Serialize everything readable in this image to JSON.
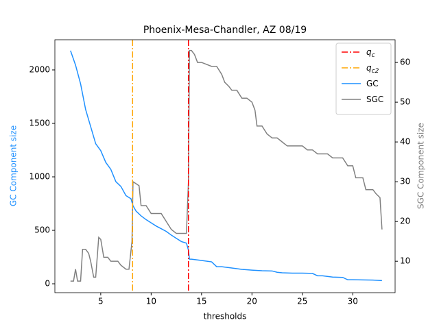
{
  "chart_data": {
    "type": "line",
    "title": "Phoenix-Mesa-Chandler, AZ 08/19",
    "xlabel": "thresholds",
    "ylabel": "GC Component size",
    "y2label": "SGC Component size",
    "xlim": [
      0.45,
      34.2
    ],
    "ylim": [
      -83,
      2282
    ],
    "y2lim": [
      2.1,
      65.7
    ],
    "xticks": [
      5,
      10,
      15,
      20,
      25,
      30
    ],
    "yticks": [
      0,
      500,
      1000,
      1500,
      2000
    ],
    "y2ticks": [
      10,
      20,
      30,
      40,
      50,
      60
    ],
    "legend": "upper right",
    "vlines": [
      {
        "name": "q",
        "name_sub": "c",
        "x": 13.7,
        "color": "red"
      },
      {
        "name": "q",
        "name_sub": "c2",
        "x": 8.16,
        "color": "orange"
      }
    ],
    "series": [
      {
        "name": "GC",
        "color": "#1e90ff",
        "axis": "y",
        "x": [
          2,
          2.5,
          3,
          3.5,
          4,
          4.5,
          5,
          5.5,
          6,
          6.5,
          7,
          7.5,
          8,
          8.2,
          8.5,
          9,
          9.5,
          10,
          10.5,
          11,
          11.5,
          12,
          12.5,
          13,
          13.5,
          13.7,
          13.8,
          14,
          15,
          16,
          16.5,
          17,
          18,
          19,
          20,
          21,
          22,
          22.5,
          23,
          24,
          25,
          26,
          26.5,
          27,
          28,
          29,
          29.5,
          30,
          31,
          32,
          32.9
        ],
        "values": [
          2180,
          2045,
          1870,
          1630,
          1470,
          1310,
          1245,
          1135,
          1070,
          955,
          910,
          825,
          795,
          730,
          680,
          635,
          600,
          570,
          540,
          515,
          490,
          455,
          425,
          395,
          380,
          315,
          230,
          230,
          218,
          205,
          160,
          160,
          148,
          135,
          128,
          122,
          120,
          108,
          103,
          100,
          100,
          97,
          75,
          75,
          63,
          60,
          38,
          38,
          36,
          35,
          30
        ]
      },
      {
        "name": "SGC",
        "color": "gray",
        "axis": "y2",
        "x": [
          2,
          2.3,
          2.5,
          2.7,
          3,
          3.2,
          3.5,
          3.8,
          4,
          4.3,
          4.5,
          4.8,
          5,
          5.3,
          5.7,
          6,
          6.7,
          7,
          7.5,
          7.8,
          8.1,
          8.2,
          8.5,
          8.8,
          9,
          9.5,
          10,
          10.5,
          11,
          11.5,
          12,
          12.5,
          13,
          13.5,
          13.7,
          13.8,
          14,
          14.3,
          14.6,
          15,
          15.5,
          16,
          16.5,
          17,
          17.3,
          17.7,
          18,
          18.5,
          19,
          19.5,
          20,
          20.3,
          20.5,
          21,
          21.5,
          22,
          22.5,
          23,
          23.5,
          24,
          25,
          25.5,
          26,
          26.5,
          27,
          27.5,
          28,
          29,
          29.5,
          30,
          30.3,
          31,
          31.3,
          32,
          32.3,
          32.7,
          32.9
        ],
        "values": [
          5,
          5,
          8,
          5,
          5,
          13,
          13,
          12,
          10,
          6,
          6,
          16,
          15.5,
          11,
          11,
          10,
          10,
          9,
          8,
          8,
          15,
          30,
          29.5,
          29,
          24,
          24,
          22,
          22,
          22,
          20,
          18,
          17,
          17,
          17,
          30,
          63,
          63,
          62,
          60,
          60,
          59.5,
          59,
          59,
          57,
          55,
          54,
          53,
          53,
          51,
          51,
          50,
          48,
          44,
          44,
          42,
          41,
          41,
          40,
          39,
          39,
          39,
          38,
          38,
          37,
          37,
          37,
          36,
          36,
          34,
          34,
          31,
          31,
          28,
          28,
          27,
          26,
          18
        ]
      }
    ]
  }
}
